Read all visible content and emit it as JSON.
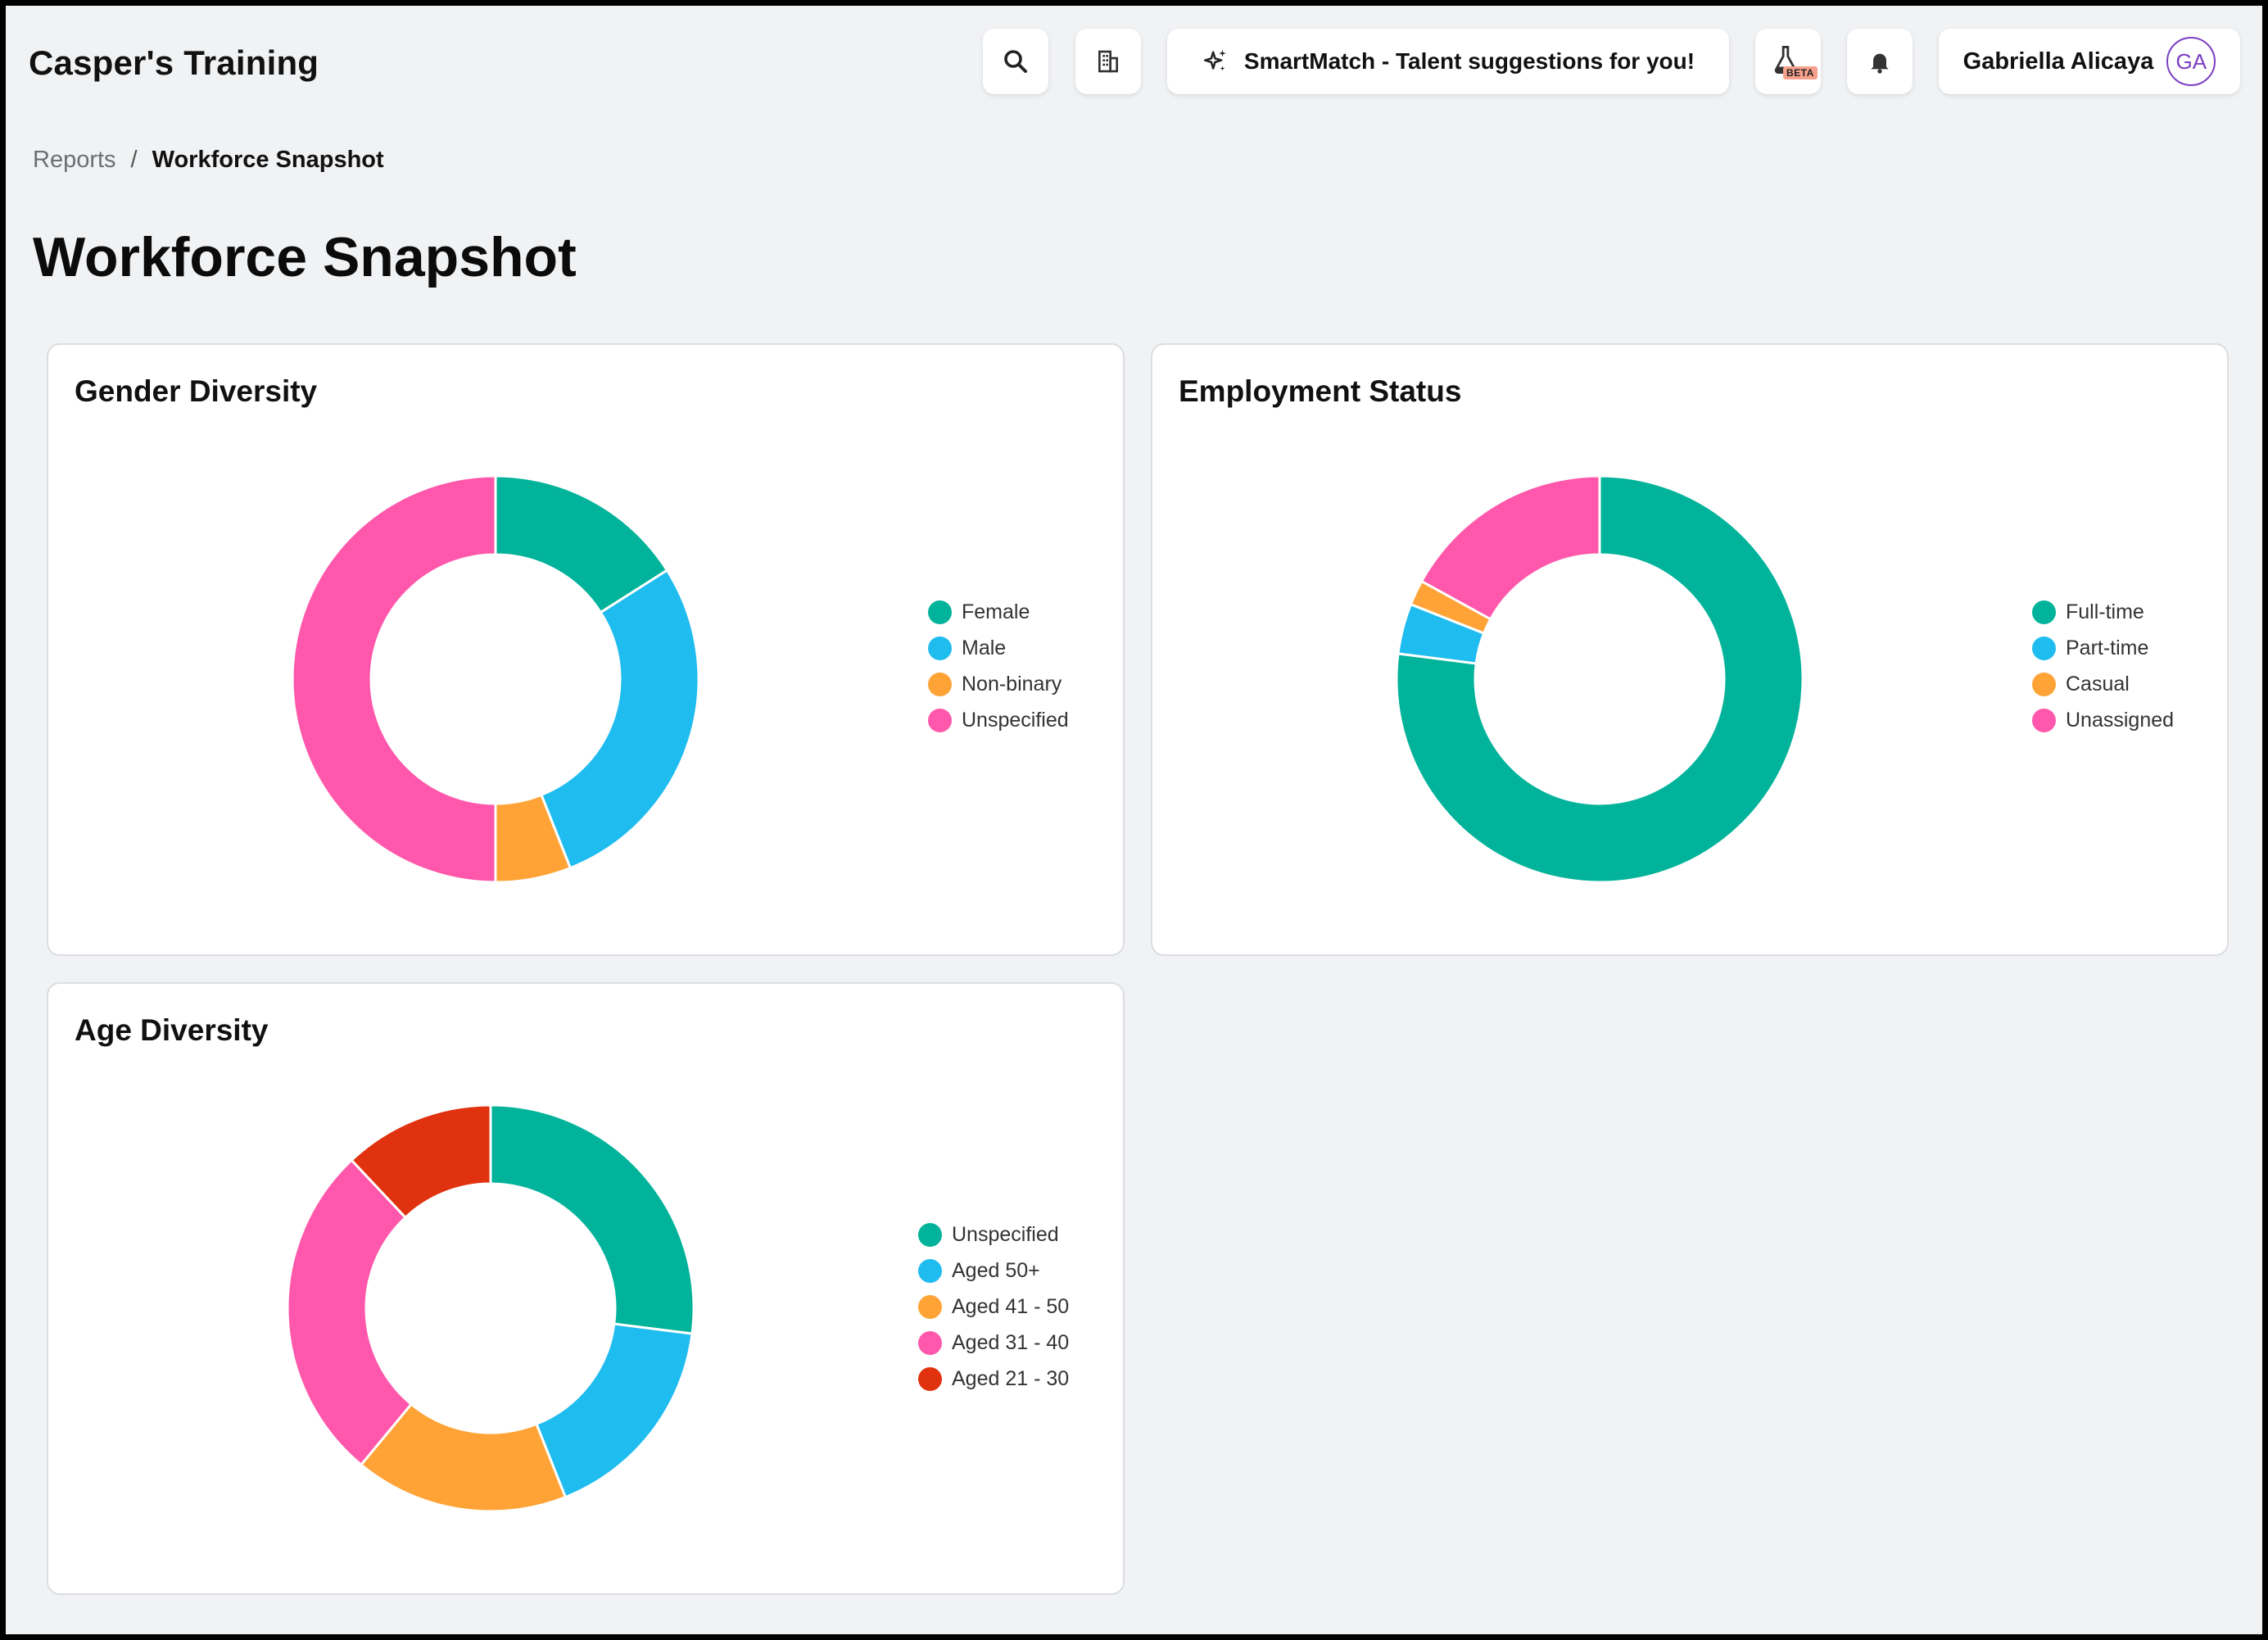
{
  "app": {
    "title": "Casper's Training"
  },
  "header": {
    "smartmatch_label": "SmartMatch - Talent suggestions for you!",
    "beta_label": "BETA",
    "user_name": "Gabriella Alicaya",
    "user_initials": "GA",
    "icons": [
      "search-icon",
      "building-icon",
      "sparkle-icon",
      "flask-icon",
      "bell-icon"
    ]
  },
  "breadcrumb": {
    "parent": "Reports",
    "separator": "/",
    "current": "Workforce Snapshot"
  },
  "page": {
    "title": "Workforce Snapshot"
  },
  "colors": {
    "teal": "#00b39a",
    "blue": "#1fbcef",
    "orange": "#ffa336",
    "pink": "#ff57ab",
    "red": "#e0320e",
    "avatar": "#7b3fc4"
  },
  "chart_data": [
    {
      "type": "pie",
      "title": "Gender Diversity",
      "donut": true,
      "legend_position": "right",
      "labels": [
        "Female",
        "Male",
        "Non-binary",
        "Unspecified"
      ],
      "values": [
        16,
        28,
        6,
        50
      ],
      "colors": [
        "#00b39a",
        "#1fbcef",
        "#ffa336",
        "#ff57ab"
      ]
    },
    {
      "type": "pie",
      "title": "Employment Status",
      "donut": true,
      "legend_position": "right",
      "labels": [
        "Full-time",
        "Part-time",
        "Casual",
        "Unassigned"
      ],
      "values": [
        77,
        4,
        2,
        17
      ],
      "colors": [
        "#00b39a",
        "#1fbcef",
        "#ffa336",
        "#ff57ab"
      ]
    },
    {
      "type": "pie",
      "title": "Age Diversity",
      "donut": true,
      "legend_position": "right",
      "labels": [
        "Unspecified",
        "Aged 50+",
        "Aged 41 - 50",
        "Aged 31 - 40",
        "Aged 21 - 30"
      ],
      "values": [
        27,
        17,
        17,
        27,
        12
      ],
      "colors": [
        "#00b39a",
        "#1fbcef",
        "#ffa336",
        "#ff57ab",
        "#e0320e"
      ]
    }
  ]
}
